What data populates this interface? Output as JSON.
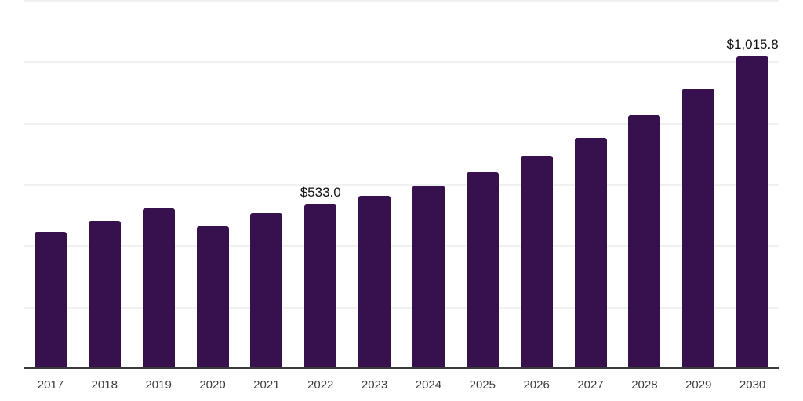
{
  "chart_data": {
    "type": "bar",
    "title": "",
    "xlabel": "",
    "ylabel": "",
    "categories": [
      "2017",
      "2018",
      "2019",
      "2020",
      "2021",
      "2022",
      "2023",
      "2024",
      "2025",
      "2026",
      "2027",
      "2028",
      "2029",
      "2030"
    ],
    "values": [
      444,
      481,
      521,
      461,
      505,
      533.0,
      562,
      596,
      638,
      691,
      751,
      825,
      911,
      1015.8
    ],
    "data_labels": {
      "2022": "$533.0",
      "2030": "$1,015.8"
    },
    "ylim": [
      0,
      1200
    ],
    "gridline_values": [
      200,
      400,
      600,
      800,
      1000,
      1200
    ],
    "grid": true,
    "legend": false,
    "colors": {
      "bar": "#36114d",
      "gridline": "#f1f1f3",
      "axis_line": "#3a3a3a",
      "tick_label": "#3d3d3d",
      "value_label": "#121212",
      "background": "#ffffff"
    }
  }
}
